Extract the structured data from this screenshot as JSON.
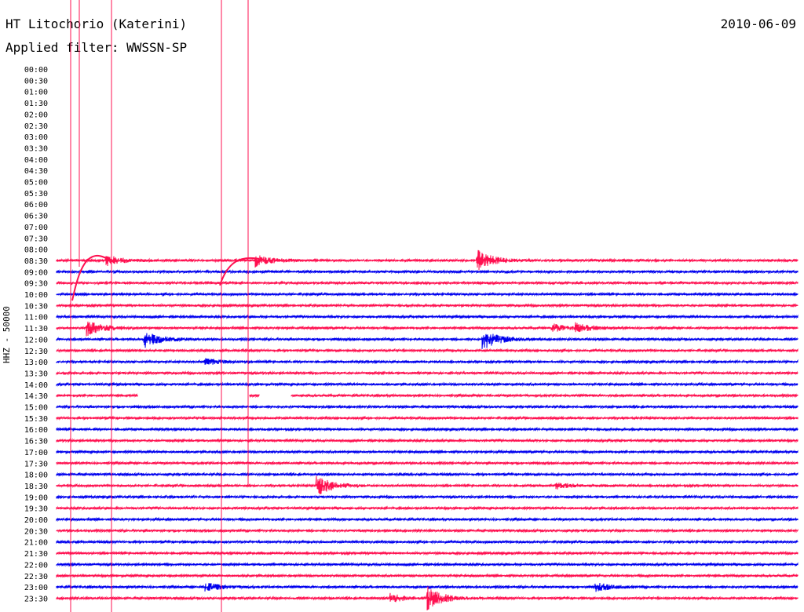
{
  "header": {
    "station": "HT Litochorio (Katerini)",
    "date": "2010-06-09",
    "filter": "Applied filter: WWSSN-SP"
  },
  "chart_data": {
    "type": "helicorder",
    "ylabel": "HHZ - 50000",
    "colors": {
      "odd": "#ff1050",
      "even": "#0000ee"
    },
    "rows": [
      {
        "label": "00:00",
        "color": "red",
        "start_minute": null
      },
      {
        "label": "00:30",
        "color": "blue",
        "start_minute": null
      },
      {
        "label": "01:00",
        "color": "red",
        "start_minute": null
      },
      {
        "label": "01:30",
        "color": "blue",
        "start_minute": null
      },
      {
        "label": "02:00",
        "color": "red",
        "start_minute": null
      },
      {
        "label": "02:30",
        "color": "blue",
        "start_minute": null
      },
      {
        "label": "03:00",
        "color": "red",
        "start_minute": null
      },
      {
        "label": "03:30",
        "color": "blue",
        "start_minute": null
      },
      {
        "label": "04:00",
        "color": "red",
        "start_minute": null
      },
      {
        "label": "04:30",
        "color": "blue",
        "start_minute": null
      },
      {
        "label": "05:00",
        "color": "red",
        "start_minute": null
      },
      {
        "label": "05:30",
        "color": "blue",
        "start_minute": null
      },
      {
        "label": "06:00",
        "color": "red",
        "start_minute": null
      },
      {
        "label": "06:30",
        "color": "blue",
        "start_minute": null
      },
      {
        "label": "07:00",
        "color": "red",
        "start_minute": null
      },
      {
        "label": "07:30",
        "color": "blue",
        "start_minute": null
      },
      {
        "label": "08:00",
        "color": "red",
        "start_minute": null
      },
      {
        "label": "08:30",
        "color": "red",
        "start_minute": 0,
        "events": [
          {
            "minute": 2,
            "amp": 0.5
          },
          {
            "minute": 8,
            "amp": 0.6
          },
          {
            "minute": 17,
            "amp": 1.0
          }
        ]
      },
      {
        "label": "09:00",
        "color": "blue",
        "start_minute": 0
      },
      {
        "label": "09:30",
        "color": "red",
        "start_minute": 0
      },
      {
        "label": "10:00",
        "color": "blue",
        "start_minute": 0
      },
      {
        "label": "10:30",
        "color": "red",
        "start_minute": 0
      },
      {
        "label": "11:00",
        "color": "blue",
        "start_minute": 0
      },
      {
        "label": "11:30",
        "color": "red",
        "start_minute": 0,
        "events": [
          {
            "minute": 1.2,
            "amp": 0.8
          },
          {
            "minute": 20,
            "amp": 0.4
          },
          {
            "minute": 21,
            "amp": 0.4
          }
        ]
      },
      {
        "label": "12:00",
        "color": "blue",
        "start_minute": 0,
        "events": [
          {
            "minute": 3.5,
            "amp": 0.8
          },
          {
            "minute": 17.2,
            "amp": 1.0
          }
        ]
      },
      {
        "label": "12:30",
        "color": "red",
        "start_minute": 0
      },
      {
        "label": "13:00",
        "color": "blue",
        "start_minute": 0,
        "events": [
          {
            "minute": 6,
            "amp": 0.3
          }
        ]
      },
      {
        "label": "13:30",
        "color": "red",
        "start_minute": 0
      },
      {
        "label": "14:00",
        "color": "blue",
        "start_minute": 0
      },
      {
        "label": "14:30",
        "color": "red",
        "start_minute": 0,
        "gaps": [
          [
            3.3,
            7.8
          ],
          [
            8.2,
            9.5
          ]
        ]
      },
      {
        "label": "15:00",
        "color": "blue",
        "start_minute": 0
      },
      {
        "label": "15:30",
        "color": "red",
        "start_minute": 0
      },
      {
        "label": "16:00",
        "color": "blue",
        "start_minute": 0
      },
      {
        "label": "16:30",
        "color": "red",
        "start_minute": 0
      },
      {
        "label": "17:00",
        "color": "blue",
        "start_minute": 0
      },
      {
        "label": "17:30",
        "color": "red",
        "start_minute": 0
      },
      {
        "label": "18:00",
        "color": "blue",
        "start_minute": 0
      },
      {
        "label": "18:30",
        "color": "red",
        "start_minute": 0,
        "events": [
          {
            "minute": 10.5,
            "amp": 1.0
          },
          {
            "minute": 20.2,
            "amp": 0.3
          }
        ]
      },
      {
        "label": "19:00",
        "color": "blue",
        "start_minute": 0
      },
      {
        "label": "19:30",
        "color": "red",
        "start_minute": 0
      },
      {
        "label": "20:00",
        "color": "blue",
        "start_minute": 0
      },
      {
        "label": "20:30",
        "color": "red",
        "start_minute": 0
      },
      {
        "label": "21:00",
        "color": "blue",
        "start_minute": 0
      },
      {
        "label": "21:30",
        "color": "red",
        "start_minute": 0
      },
      {
        "label": "22:00",
        "color": "blue",
        "start_minute": 0
      },
      {
        "label": "22:30",
        "color": "red",
        "start_minute": 0
      },
      {
        "label": "23:00",
        "color": "blue",
        "start_minute": 0,
        "events": [
          {
            "minute": 6,
            "amp": 0.4
          },
          {
            "minute": 21.8,
            "amp": 0.4
          }
        ]
      },
      {
        "label": "23:30",
        "color": "red",
        "start_minute": 0,
        "events": [
          {
            "minute": 13.5,
            "amp": 0.4
          },
          {
            "minute": 15.0,
            "amp": 1.0
          }
        ]
      }
    ],
    "minutes_per_row": 30
  }
}
